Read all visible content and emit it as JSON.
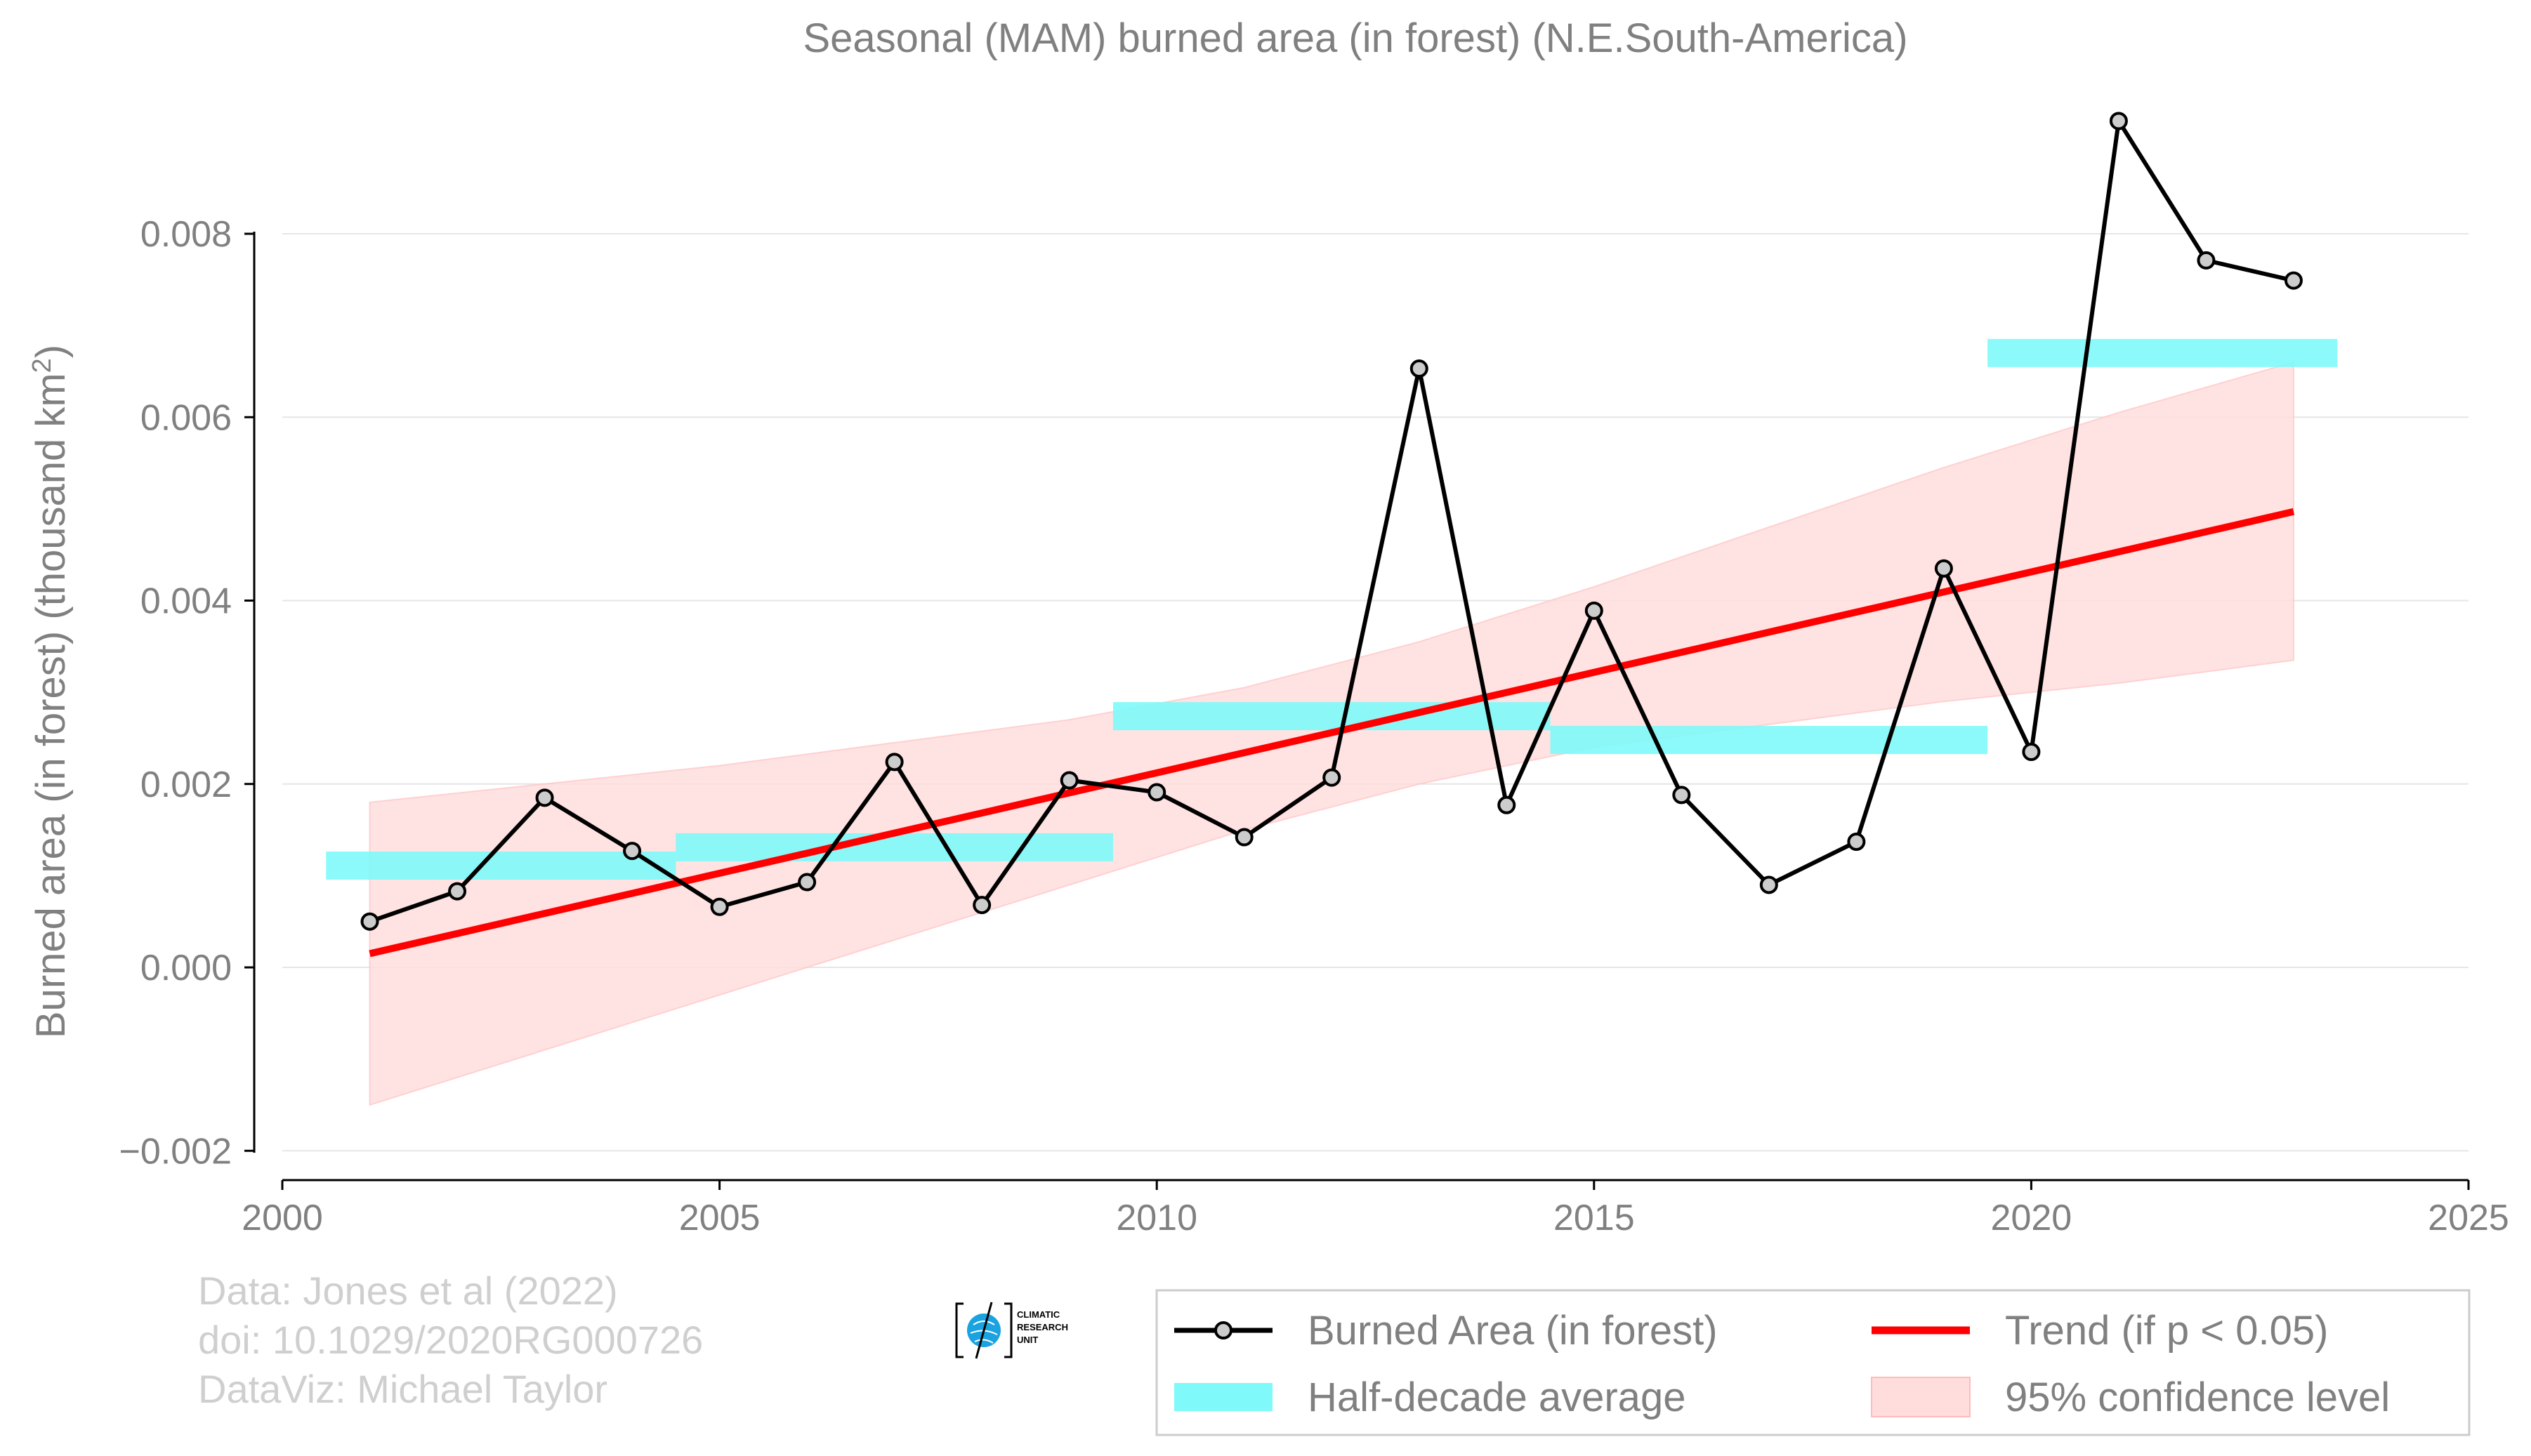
{
  "chart_data": {
    "type": "line",
    "title": "Seasonal (MAM) burned area (in forest) (N.E.South-America)",
    "xlabel": "",
    "ylabel": "Burned area (in forest) (thousand km",
    "ylabel_sup": "2",
    "ylabel_end": ")",
    "xlim": [
      2000,
      2025
    ],
    "ylim": [
      -0.002,
      0.0093
    ],
    "xticks": [
      2000,
      2005,
      2010,
      2015,
      2020,
      2025
    ],
    "yticks": [
      -0.002,
      0.0,
      0.002,
      0.004,
      0.006,
      0.008
    ],
    "ytick_labels": [
      "−0.002",
      "0.000",
      "0.002",
      "0.004",
      "0.006",
      "0.008"
    ],
    "grid": "horizontal",
    "series": [
      {
        "name": "Burned Area (in forest)",
        "color": "#000000",
        "x": [
          2001,
          2002,
          2003,
          2004,
          2005,
          2006,
          2007,
          2008,
          2009,
          2010,
          2011,
          2012,
          2013,
          2014,
          2015,
          2016,
          2017,
          2018,
          2019,
          2020,
          2021,
          2022,
          2023
        ],
        "y": [
          0.0005,
          0.00083,
          0.00185,
          0.00127,
          0.00066,
          0.00093,
          0.00224,
          0.00068,
          0.00204,
          0.00191,
          0.00142,
          0.00207,
          0.00653,
          0.00177,
          0.00389,
          0.00188,
          0.0009,
          0.00137,
          0.00435,
          0.00235,
          0.00923,
          0.00771,
          0.00749
        ]
      }
    ],
    "half_decade_average": {
      "name": "Half-decade average",
      "color": "#7ff9f9",
      "segments": [
        {
          "x_start": 2000.5,
          "x_end": 2004.5,
          "y": 0.00111
        },
        {
          "x_start": 2004.5,
          "x_end": 2009.5,
          "y": 0.00131
        },
        {
          "x_start": 2009.5,
          "x_end": 2014.5,
          "y": 0.00274
        },
        {
          "x_start": 2014.5,
          "x_end": 2019.5,
          "y": 0.00248
        },
        {
          "x_start": 2019.5,
          "x_end": 2023.5,
          "y": 0.0067
        }
      ]
    },
    "trend": {
      "name": "Trend (if p < 0.05)",
      "color": "#ff0000",
      "x": [
        2001,
        2023
      ],
      "y": [
        0.00015,
        0.00497
      ]
    },
    "confidence": {
      "name": "95% confidence level",
      "color": "#ffdddd",
      "x": [
        2001,
        2003,
        2005,
        2007,
        2009,
        2011,
        2013,
        2015,
        2017,
        2019,
        2021,
        2023
      ],
      "upper": [
        0.0018,
        0.002,
        0.0022,
        0.00245,
        0.0027,
        0.00305,
        0.00355,
        0.00415,
        0.0048,
        0.00545,
        0.00605,
        0.0066
      ],
      "lower": [
        -0.0015,
        -0.0009,
        -0.0003,
        0.0003,
        0.0009,
        0.0015,
        0.002,
        0.0024,
        0.00265,
        0.0029,
        0.0031,
        0.00335
      ]
    },
    "legend": {
      "placement": "bottom-right",
      "entries": [
        "Burned Area (in forest)",
        "Trend (if p < 0.05)",
        "Half-decade average",
        "95% confidence level"
      ]
    }
  },
  "credits": {
    "line1": "Data: Jones et al (2022)",
    "line2": "doi: 10.1029/2020RG000726",
    "line3": "DataViz: Michael Taylor"
  },
  "logo": {
    "line1": "CLIMATIC",
    "line2": "RESEARCH",
    "line3": "UNIT"
  }
}
